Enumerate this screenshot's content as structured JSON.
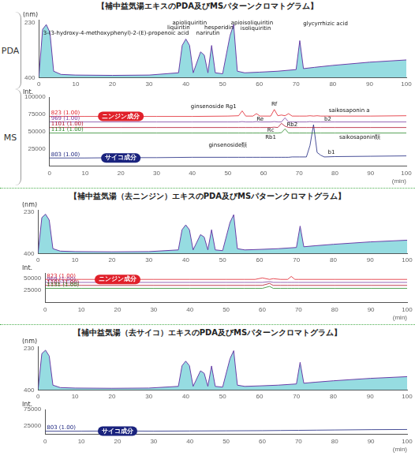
{
  "chart_data": [
    {
      "type": "area",
      "title": "【補中益気湯エキスのPDA及びMSパターンクロマトグラム】",
      "subtitle": "PDA",
      "x": [
        0,
        1,
        2,
        3,
        4,
        6,
        10,
        20,
        30,
        38,
        39,
        40,
        41,
        42,
        44,
        45,
        46,
        47,
        48,
        50,
        52,
        53,
        54,
        56,
        60,
        65,
        70,
        71,
        72,
        75,
        80,
        90,
        100
      ],
      "series": [
        {
          "name": "PDA",
          "color": "#6a3fa8",
          "values": [
            395,
            250,
            235,
            260,
            380,
            390,
            392,
            393,
            392,
            385,
            300,
            280,
            300,
            385,
            320,
            330,
            385,
            300,
            385,
            388,
            270,
            235,
            380,
            385,
            383,
            380,
            375,
            285,
            372,
            368,
            362,
            352,
            345
          ]
        }
      ],
      "xlim": [
        0,
        100
      ],
      "xticks": [
        0,
        10,
        20,
        30,
        40,
        50,
        60,
        70,
        80,
        90,
        100
      ],
      "ylim": [
        400,
        220
      ],
      "yticks": [
        230,
        400
      ],
      "ylabel": "(nm)",
      "grid": false,
      "annotations": [
        {
          "text": "3-(3-hydroxy-4-methoxyphenyl)-2-(E)-propenoic acid",
          "x": 21,
          "y": 262,
          "type": "label"
        },
        {
          "text": "liquiritin",
          "x": 38,
          "y": 246,
          "type": "label"
        },
        {
          "text": "apioliquiritin",
          "x": 41,
          "y": 230,
          "type": "label"
        },
        {
          "text": "narirutin",
          "x": 46,
          "y": 262,
          "type": "label"
        },
        {
          "text": "hesperidin",
          "x": 49,
          "y": 244,
          "type": "label"
        },
        {
          "text": "apioisoliquiritin",
          "x": 58,
          "y": 230,
          "type": "label"
        },
        {
          "text": "isoliquiritin",
          "x": 59,
          "y": 248,
          "type": "label"
        },
        {
          "text": "glycyrrhizic acid",
          "x": 78,
          "y": 232,
          "type": "label"
        }
      ]
    },
    {
      "type": "line",
      "subtitle": "MS",
      "x": [
        0,
        10,
        20,
        30,
        40,
        50,
        53,
        54,
        55,
        57,
        58,
        59,
        62,
        63,
        64,
        65,
        66,
        67,
        68,
        70,
        72,
        73,
        74,
        75,
        76,
        77,
        80,
        90,
        100
      ],
      "series": [
        {
          "name": "823 (1.00)",
          "color": "#e0202a",
          "values": [
            72000,
            72000,
            72000,
            72000,
            72000,
            72500,
            73000,
            80000,
            72500,
            72500,
            76000,
            72500,
            72500,
            82000,
            73000,
            74000,
            73000,
            76000,
            72500,
            72500,
            72500,
            73000,
            72500,
            73000,
            72500,
            72500,
            72500,
            72500,
            73000
          ]
        },
        {
          "name": "969 (1.00)",
          "color": "#7b3fa0",
          "values": [
            64000,
            64000,
            64000,
            64000,
            64000,
            64000,
            64000,
            64500,
            64000,
            64000,
            64500,
            64000,
            64000,
            64500,
            64000,
            64000,
            70000,
            64000,
            64000,
            64000,
            64000,
            64500,
            64000,
            64000,
            64000,
            64000,
            64000,
            64000,
            64000
          ]
        },
        {
          "name": "1101 (1.00)",
          "color": "#b0102a",
          "values": [
            56000,
            56000,
            56000,
            56000,
            56000,
            56000,
            56000,
            56000,
            56000,
            56000,
            56000,
            56000,
            56000,
            56500,
            56000,
            62000,
            58000,
            56000,
            56000,
            56000,
            56000,
            56000,
            56000,
            56000,
            56000,
            56000,
            56000,
            56000,
            56000
          ]
        },
        {
          "name": "1131 (1.00)",
          "color": "#2a8a2a",
          "values": [
            48000,
            48000,
            48000,
            48000,
            48000,
            48000,
            48000,
            48000,
            48000,
            48000,
            48000,
            48000,
            48000,
            48000,
            48000,
            48500,
            54000,
            48000,
            48000,
            48000,
            48000,
            48000,
            48000,
            48000,
            48000,
            48000,
            48000,
            48000,
            48000
          ]
        },
        {
          "name": "803 (1.00)",
          "color": "#1a237e",
          "values": [
            12000,
            12000,
            12500,
            12500,
            13000,
            13000,
            13000,
            13000,
            13000,
            13000,
            13000,
            13000,
            13000,
            13000,
            13000,
            13000,
            13000,
            13000,
            13500,
            13500,
            13500,
            30000,
            60000,
            20000,
            16000,
            13500,
            14000,
            14500,
            15000
          ]
        }
      ],
      "xlim": [
        0,
        100
      ],
      "xticks": [
        0,
        10,
        20,
        30,
        40,
        50,
        60,
        70,
        80,
        90,
        100
      ],
      "xlabel": "(min)",
      "ylim": [
        0,
        100000
      ],
      "yticks": [
        25000,
        50000,
        75000,
        100000
      ],
      "ylabel": "Int.",
      "grid": false,
      "annotations": [
        {
          "text": "ニンジン成分",
          "x": 20,
          "y": 72000,
          "type": "box",
          "color": "#e0202a"
        },
        {
          "text": "サイコ成分",
          "x": 20,
          "y": 12000,
          "type": "box",
          "color": "#1a237e"
        },
        {
          "text": "ginsenoside Rg1",
          "x": 46,
          "y": 86000,
          "type": "label"
        },
        {
          "text": "Re",
          "x": 59,
          "y": 68000,
          "type": "label"
        },
        {
          "text": "Rf",
          "x": 63,
          "y": 90000,
          "type": "label"
        },
        {
          "text": "Rb2",
          "x": 68,
          "y": 60000,
          "type": "label"
        },
        {
          "text": "Rc",
          "x": 62,
          "y": 52000,
          "type": "label"
        },
        {
          "text": "Rb1",
          "x": 62,
          "y": 42000,
          "type": "label"
        },
        {
          "text": "ginsenoside類",
          "x": 50,
          "y": 30000,
          "type": "label"
        },
        {
          "text": "saikosaponin a",
          "x": 84,
          "y": 80000,
          "type": "label"
        },
        {
          "text": "b2",
          "x": 78,
          "y": 68000,
          "type": "label"
        },
        {
          "text": "b1",
          "x": 79,
          "y": 20000,
          "type": "label"
        },
        {
          "text": "saikosaponin類",
          "x": 87,
          "y": 42000,
          "type": "label"
        }
      ]
    },
    {
      "type": "area",
      "title": "【補中益気湯（去ニンジン）エキスのPDA及びMSパターンクロマトグラム】",
      "x": [
        0,
        1,
        2,
        3,
        4,
        6,
        10,
        20,
        30,
        38,
        39,
        40,
        41,
        42,
        44,
        45,
        46,
        47,
        48,
        50,
        52,
        53,
        54,
        56,
        60,
        65,
        70,
        71,
        72,
        75,
        80,
        90,
        100
      ],
      "series": [
        {
          "name": "PDA",
          "color": "#6a3fa8",
          "values": [
            395,
            252,
            238,
            262,
            380,
            390,
            392,
            393,
            392,
            385,
            302,
            282,
            302,
            385,
            322,
            332,
            385,
            302,
            385,
            388,
            272,
            240,
            380,
            385,
            383,
            380,
            375,
            287,
            372,
            368,
            362,
            352,
            345
          ]
        }
      ],
      "xlim": [
        0,
        100
      ],
      "xticks": [
        0,
        10,
        20,
        30,
        40,
        50,
        60,
        70,
        80,
        90,
        100
      ],
      "ylim": [
        400,
        220
      ],
      "yticks": [
        230,
        400
      ],
      "ylabel": "(nm)",
      "grid": false
    },
    {
      "type": "line",
      "x": [
        0,
        10,
        20,
        30,
        40,
        50,
        55,
        58,
        60,
        62,
        63,
        65,
        67,
        68,
        69,
        70,
        80,
        90,
        100
      ],
      "series": [
        {
          "name": "823 (1.00)",
          "color": "#e0202a",
          "values": [
            47000,
            47000,
            47000,
            47000,
            47000,
            47000,
            47000,
            47000,
            50000,
            47000,
            48500,
            47000,
            47000,
            53000,
            47000,
            47000,
            47000,
            47000,
            47000
          ]
        },
        {
          "name": "969 (1.00)",
          "color": "#7b3fa0",
          "values": [
            41000,
            41000,
            41000,
            41000,
            41000,
            41000,
            41000,
            41000,
            41000,
            42500,
            41000,
            41000,
            41000,
            41000,
            41000,
            41000,
            41000,
            41000,
            41000
          ]
        },
        {
          "name": "1101 (1.00)",
          "color": "#b0102a",
          "values": [
            35000,
            35000,
            35000,
            35000,
            35000,
            35000,
            35000,
            35000,
            35000,
            39000,
            35000,
            35000,
            35000,
            35000,
            35000,
            35000,
            35000,
            35000,
            35000
          ]
        },
        {
          "name": "1131 (1.00)",
          "color": "#2a8a2a",
          "values": [
            29000,
            29000,
            29000,
            29000,
            29000,
            29000,
            29000,
            29000,
            29000,
            33000,
            29000,
            29000,
            29000,
            29000,
            29000,
            29000,
            29000,
            29000,
            29000
          ]
        }
      ],
      "xlim": [
        0,
        100
      ],
      "xticks": [
        0,
        10,
        20,
        30,
        40,
        50,
        60,
        70,
        80,
        90,
        100
      ],
      "xlabel": "(min)",
      "ylim": [
        0,
        60000
      ],
      "yticks": [
        25000,
        50000
      ],
      "ylabel": "Int.",
      "grid": false,
      "annotations": [
        {
          "text": "ニンジン成分",
          "x": 20,
          "y": 47000,
          "type": "box",
          "color": "#e0202a"
        }
      ]
    },
    {
      "type": "area",
      "title": "【補中益気湯（去サイコ）エキスのPDA及びMSパターンクロマトグラム】",
      "x": [
        0,
        1,
        2,
        3,
        4,
        6,
        10,
        20,
        30,
        38,
        39,
        40,
        41,
        42,
        44,
        45,
        46,
        47,
        48,
        50,
        52,
        53,
        54,
        56,
        60,
        65,
        70,
        71,
        72,
        75,
        80,
        90,
        100
      ],
      "series": [
        {
          "name": "PDA",
          "color": "#6a3fa8",
          "values": [
            395,
            250,
            236,
            260,
            380,
            390,
            392,
            393,
            392,
            385,
            300,
            281,
            300,
            385,
            321,
            331,
            385,
            301,
            385,
            388,
            271,
            238,
            380,
            385,
            383,
            380,
            375,
            286,
            372,
            368,
            362,
            352,
            345
          ]
        }
      ],
      "xlim": [
        0,
        100
      ],
      "xticks": [
        0,
        10,
        20,
        30,
        40,
        50,
        60,
        70,
        80,
        90,
        100
      ],
      "ylim": [
        400,
        220
      ],
      "yticks": [
        230,
        400
      ],
      "ylabel": "(nm)",
      "grid": false
    },
    {
      "type": "line",
      "x": [
        0,
        10,
        20,
        30,
        40,
        50,
        60,
        65,
        70,
        75,
        80,
        90,
        100
      ],
      "series": [
        {
          "name": "803 (1.00)",
          "color": "#1a237e",
          "values": [
            10000,
            10000,
            10500,
            10000,
            10500,
            11000,
            11500,
            12000,
            12500,
            13000,
            13500,
            14500,
            15000
          ]
        }
      ],
      "xlim": [
        0,
        100
      ],
      "xticks": [
        0,
        10,
        20,
        30,
        40,
        50,
        60,
        70,
        80,
        90,
        100
      ],
      "xlabel": "(min)",
      "ylim": [
        0,
        75000
      ],
      "yticks": [
        25000,
        75000
      ],
      "ylabel": "Int.",
      "grid": false,
      "annotations": [
        {
          "text": "サイコ成分",
          "x": 20,
          "y": 10000,
          "type": "box",
          "color": "#1a237e"
        }
      ]
    }
  ]
}
